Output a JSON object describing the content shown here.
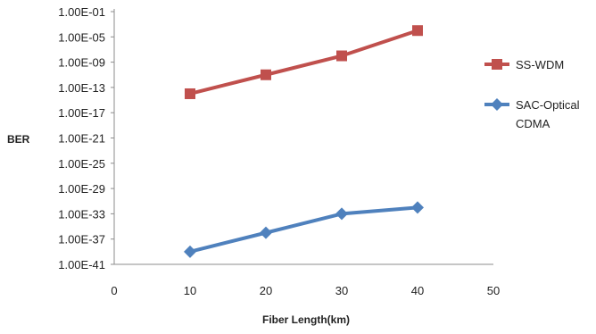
{
  "chart_data": {
    "type": "line",
    "title": "",
    "xlabel": "Fiber Length(km)",
    "ylabel": "BER",
    "x_ticks": [
      "0",
      "10",
      "20",
      "30",
      "40",
      "50"
    ],
    "xlim": [
      0,
      50
    ],
    "y_scale": "log",
    "y_ticks": [
      "1.00E-01",
      "1.00E-05",
      "1.00E-09",
      "1.00E-13",
      "1.00E-17",
      "1.00E-21",
      "1.00E-25",
      "1.00E-29",
      "1.00E-33",
      "1.00E-37",
      "1.00E-41"
    ],
    "ylim": [
      1e-41,
      0.1
    ],
    "grid": false,
    "legend_position": "right",
    "series": [
      {
        "name": "SS-WDM",
        "legend_lines": [
          "SS-WDM"
        ],
        "marker": "square",
        "color": "#C0504D",
        "x": [
          10,
          20,
          30,
          40
        ],
        "y": [
          1e-14,
          1e-11,
          1e-08,
          0.0001
        ]
      },
      {
        "name": "SAC-Optical CDMA",
        "legend_lines": [
          "SAC-Optical",
          "CDMA"
        ],
        "marker": "diamond",
        "color": "#4F81BD",
        "x": [
          10,
          20,
          30,
          40
        ],
        "y": [
          1e-39,
          1e-36,
          1e-33,
          1e-32
        ]
      }
    ]
  }
}
